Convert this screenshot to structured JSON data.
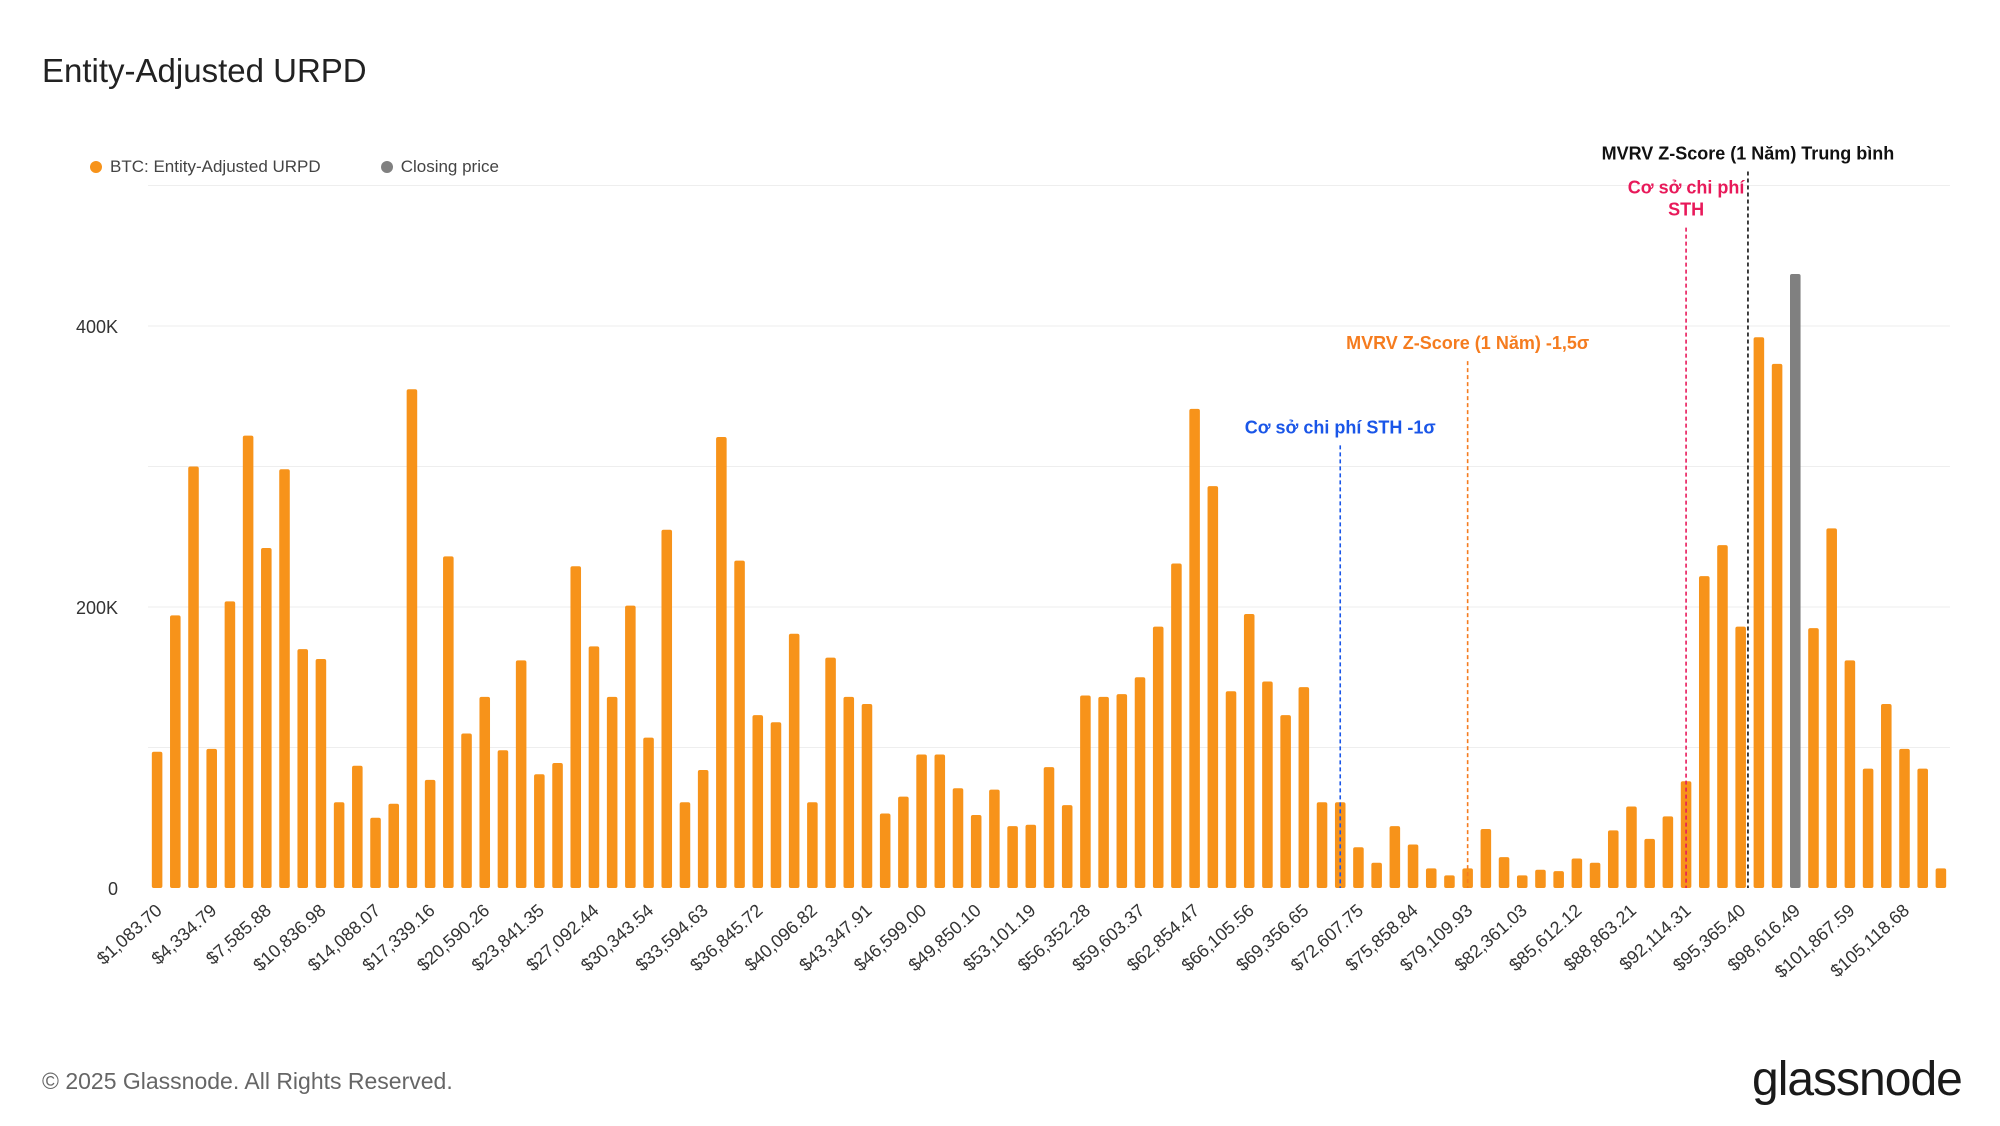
{
  "title": "Entity-Adjusted URPD",
  "footer": {
    "copyright": "© 2025 Glassnode. All Rights Reserved.",
    "logo": "glassnode"
  },
  "legend": [
    {
      "label": "BTC: Entity-Adjusted URPD",
      "color": "#f7931a"
    },
    {
      "label": "Closing price",
      "color": "#808080"
    }
  ],
  "chart_data": {
    "type": "bar",
    "title": "Entity-Adjusted URPD",
    "ylim": [
      0,
      500000
    ],
    "yticks": [
      {
        "value": 0,
        "label": "0"
      },
      {
        "value": 200000,
        "label": "200K"
      },
      {
        "value": 400000,
        "label": "400K"
      }
    ],
    "bar_color": "#f7931a",
    "highlight_color": "#808080",
    "highlight_index": 90,
    "values": [
      97000,
      194000,
      300000,
      99000,
      204000,
      322000,
      242000,
      298000,
      170000,
      163000,
      61000,
      87000,
      50000,
      60000,
      355000,
      77000,
      236000,
      110000,
      136000,
      98000,
      162000,
      81000,
      89000,
      229000,
      172000,
      136000,
      201000,
      107000,
      255000,
      61000,
      84000,
      321000,
      233000,
      123000,
      118000,
      181000,
      61000,
      164000,
      136000,
      131000,
      53000,
      65000,
      95000,
      95000,
      71000,
      52000,
      70000,
      44000,
      45000,
      86000,
      59000,
      137000,
      136000,
      138000,
      150000,
      186000,
      231000,
      341000,
      286000,
      140000,
      195000,
      147000,
      123000,
      143000,
      61000,
      61000,
      29000,
      18000,
      44000,
      31000,
      14000,
      9000,
      14000,
      42000,
      22000,
      9000,
      13000,
      12000,
      21000,
      18000,
      41000,
      58000,
      35000,
      51000,
      76000,
      222000,
      244000,
      186000,
      392000,
      373000,
      437000,
      185000,
      256000,
      162000,
      85000,
      131000,
      99000,
      85000,
      14000
    ],
    "tick_labels": [
      {
        "index": 0,
        "label": "$1,083.70"
      },
      {
        "index": 3,
        "label": "$4,334.79"
      },
      {
        "index": 6,
        "label": "$7,585.88"
      },
      {
        "index": 9,
        "label": "$10,836.98"
      },
      {
        "index": 12,
        "label": "$14,088.07"
      },
      {
        "index": 15,
        "label": "$17,339.16"
      },
      {
        "index": 18,
        "label": "$20,590.26"
      },
      {
        "index": 21,
        "label": "$23,841.35"
      },
      {
        "index": 24,
        "label": "$27,092.44"
      },
      {
        "index": 27,
        "label": "$30,343.54"
      },
      {
        "index": 30,
        "label": "$33,594.63"
      },
      {
        "index": 33,
        "label": "$36,845.72"
      },
      {
        "index": 36,
        "label": "$40,096.82"
      },
      {
        "index": 39,
        "label": "$43,347.91"
      },
      {
        "index": 42,
        "label": "$46,599.00"
      },
      {
        "index": 45,
        "label": "$49,850.10"
      },
      {
        "index": 48,
        "label": "$53,101.19"
      },
      {
        "index": 51,
        "label": "$56,352.28"
      },
      {
        "index": 54,
        "label": "$59,603.37"
      },
      {
        "index": 57,
        "label": "$62,854.47"
      },
      {
        "index": 60,
        "label": "$66,105.56"
      },
      {
        "index": 63,
        "label": "$69,356.65"
      },
      {
        "index": 66,
        "label": "$72,607.75"
      },
      {
        "index": 69,
        "label": "$75,858.84"
      },
      {
        "index": 72,
        "label": "$79,109.93"
      },
      {
        "index": 75,
        "label": "$82,361.03"
      },
      {
        "index": 78,
        "label": "$85,612.12"
      },
      {
        "index": 81,
        "label": "$88,863.21"
      },
      {
        "index": 84,
        "label": "$92,114.31"
      },
      {
        "index": 87,
        "label": "$95,365.40"
      },
      {
        "index": 90,
        "label": "$98,616.49"
      },
      {
        "index": 93,
        "label": "$101,867.59"
      },
      {
        "index": 96,
        "label": "$105,118.68"
      }
    ],
    "annotations": [
      {
        "label": "Cơ sở chi phí STH -1σ",
        "bar_index": 65,
        "top_value": 315000,
        "color": "#1a56e8",
        "lines": [
          "Cơ sở chi phí STH -1σ"
        ]
      },
      {
        "label": "MVRV Z-Score (1 Năm) -1,5σ",
        "bar_index": 72,
        "top_value": 375000,
        "color": "#f57c1f",
        "lines": [
          "MVRV Z-Score (1 Năm) -1,5σ"
        ]
      },
      {
        "label": "Cơ sở chi phí STH",
        "bar_index": 84,
        "top_value": 470000,
        "color": "#e8195a",
        "lines": [
          "Cơ sở chi phí",
          "STH"
        ]
      },
      {
        "label": "MVRV Z-Score (1 Năm) Trung bình",
        "bar_index": 87.4,
        "top_value": 510000,
        "color": "#111111",
        "lines": [
          "MVRV Z-Score (1 Năm) Trung bình"
        ]
      }
    ]
  }
}
